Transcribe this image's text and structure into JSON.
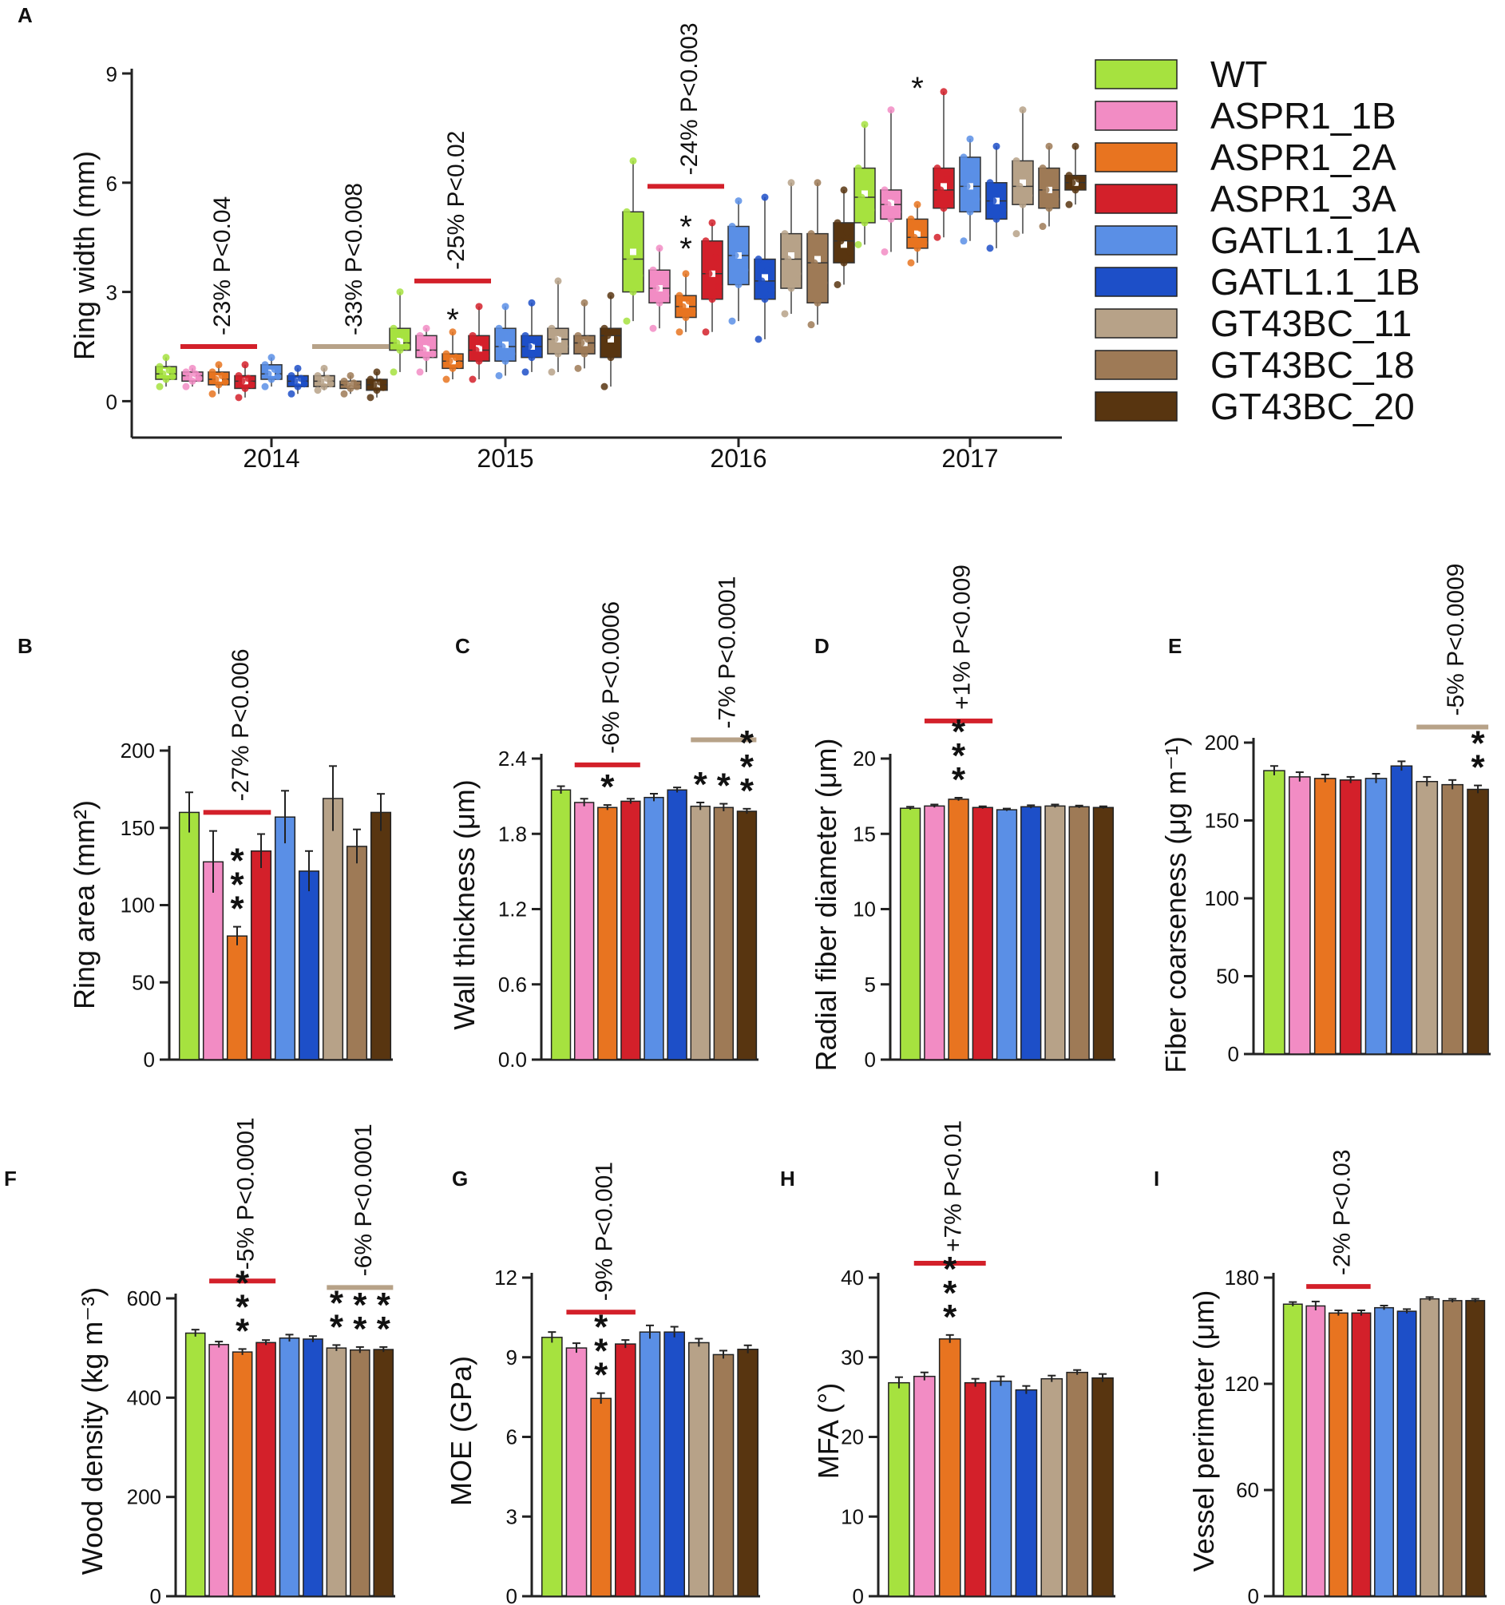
{
  "colors": {
    "WT": "#a6e23f",
    "ASPR1_1B": "#f28cc4",
    "ASPR1_2A": "#e87420",
    "ASPR1_3A": "#d3202a",
    "GATL1.1_1A": "#5a8fe6",
    "GATL1.1_1B": "#1d4fc8",
    "GT43BC_11": "#b7a288",
    "GT43BC_18": "#9e7a56",
    "GT43BC_20": "#583510"
  },
  "legend": [
    "WT",
    "ASPR1_1B",
    "ASPR1_2A",
    "ASPR1_3A",
    "GATL1.1_1A",
    "GATL1.1_1B",
    "GT43BC_11",
    "GT43BC_18",
    "GT43BC_20"
  ],
  "chart_data": [
    {
      "id": "A",
      "letter": "A",
      "type": "box",
      "ylabel": "Ring width (mm)",
      "yticks": [
        "0",
        "3",
        "6",
        "9"
      ],
      "ylim": [
        -1,
        9
      ],
      "categories": [
        "2014",
        "2015",
        "2016",
        "2017"
      ],
      "series": [
        {
          "name": "WT",
          "values": [
            {
              "q1": 0.6,
              "median": 0.75,
              "q3": 0.95,
              "min": 0.4,
              "max": 1.2,
              "mean": 0.8
            },
            {
              "q1": 1.4,
              "median": 1.6,
              "q3": 2.0,
              "min": 0.8,
              "max": 3.0,
              "mean": 1.65
            },
            {
              "q1": 3.0,
              "median": 3.9,
              "q3": 5.2,
              "min": 2.2,
              "max": 6.6,
              "mean": 4.1
            },
            {
              "q1": 4.9,
              "median": 5.6,
              "q3": 6.4,
              "min": 4.3,
              "max": 7.6,
              "mean": 5.7
            }
          ]
        },
        {
          "name": "ASPR1_1B",
          "values": [
            {
              "q1": 0.55,
              "median": 0.7,
              "q3": 0.8,
              "min": 0.4,
              "max": 0.9,
              "mean": 0.68
            },
            {
              "q1": 1.2,
              "median": 1.4,
              "q3": 1.8,
              "min": 0.8,
              "max": 2.0,
              "mean": 1.45
            },
            {
              "q1": 2.7,
              "median": 3.1,
              "q3": 3.6,
              "min": 2.0,
              "max": 4.2,
              "mean": 3.1
            },
            {
              "q1": 5.0,
              "median": 5.4,
              "q3": 5.8,
              "min": 4.1,
              "max": 8.0,
              "mean": 5.45
            }
          ]
        },
        {
          "name": "ASPR1_2A",
          "values": [
            {
              "q1": 0.45,
              "median": 0.6,
              "q3": 0.8,
              "min": 0.2,
              "max": 1.0,
              "mean": 0.62
            },
            {
              "q1": 0.9,
              "median": 1.1,
              "q3": 1.3,
              "min": 0.6,
              "max": 1.9,
              "mean": 1.1
            },
            {
              "q1": 2.3,
              "median": 2.6,
              "q3": 2.9,
              "min": 1.9,
              "max": 3.5,
              "mean": 2.65
            },
            {
              "q1": 4.2,
              "median": 4.5,
              "q3": 5.0,
              "min": 3.8,
              "max": 5.4,
              "mean": 4.6
            }
          ]
        },
        {
          "name": "ASPR1_3A",
          "values": [
            {
              "q1": 0.35,
              "median": 0.55,
              "q3": 0.7,
              "min": 0.1,
              "max": 1.0,
              "mean": 0.55
            },
            {
              "q1": 1.1,
              "median": 1.4,
              "q3": 1.8,
              "min": 0.6,
              "max": 2.6,
              "mean": 1.45
            },
            {
              "q1": 2.8,
              "median": 3.5,
              "q3": 4.4,
              "min": 1.9,
              "max": 4.9,
              "mean": 3.5
            },
            {
              "q1": 5.3,
              "median": 5.8,
              "q3": 6.4,
              "min": 4.5,
              "max": 8.5,
              "mean": 5.9
            }
          ]
        },
        {
          "name": "GATL1.1_1A",
          "values": [
            {
              "q1": 0.6,
              "median": 0.75,
              "q3": 1.0,
              "min": 0.4,
              "max": 1.2,
              "mean": 0.78
            },
            {
              "q1": 1.1,
              "median": 1.5,
              "q3": 2.0,
              "min": 0.7,
              "max": 2.6,
              "mean": 1.55
            },
            {
              "q1": 3.2,
              "median": 4.0,
              "q3": 4.8,
              "min": 2.2,
              "max": 5.5,
              "mean": 4.0
            },
            {
              "q1": 5.2,
              "median": 5.9,
              "q3": 6.7,
              "min": 4.4,
              "max": 7.2,
              "mean": 5.9
            }
          ]
        },
        {
          "name": "GATL1.1_1B",
          "values": [
            {
              "q1": 0.4,
              "median": 0.55,
              "q3": 0.7,
              "min": 0.2,
              "max": 0.9,
              "mean": 0.55
            },
            {
              "q1": 1.2,
              "median": 1.5,
              "q3": 1.8,
              "min": 0.8,
              "max": 2.7,
              "mean": 1.5
            },
            {
              "q1": 2.8,
              "median": 3.3,
              "q3": 3.9,
              "min": 1.7,
              "max": 5.6,
              "mean": 3.4
            },
            {
              "q1": 5.0,
              "median": 5.5,
              "q3": 6.0,
              "min": 4.2,
              "max": 7.0,
              "mean": 5.5
            }
          ]
        },
        {
          "name": "GT43BC_11",
          "values": [
            {
              "q1": 0.4,
              "median": 0.55,
              "q3": 0.7,
              "min": 0.3,
              "max": 0.9,
              "mean": 0.56
            },
            {
              "q1": 1.3,
              "median": 1.7,
              "q3": 2.0,
              "min": 0.8,
              "max": 3.3,
              "mean": 1.7
            },
            {
              "q1": 3.1,
              "median": 3.9,
              "q3": 4.6,
              "min": 2.4,
              "max": 6.0,
              "mean": 4.0
            },
            {
              "q1": 5.4,
              "median": 5.9,
              "q3": 6.6,
              "min": 4.6,
              "max": 8.0,
              "mean": 6.0
            }
          ]
        },
        {
          "name": "GT43BC_18",
          "values": [
            {
              "q1": 0.35,
              "median": 0.45,
              "q3": 0.55,
              "min": 0.2,
              "max": 0.7,
              "mean": 0.45
            },
            {
              "q1": 1.3,
              "median": 1.6,
              "q3": 1.8,
              "min": 0.9,
              "max": 2.7,
              "mean": 1.6
            },
            {
              "q1": 2.7,
              "median": 3.8,
              "q3": 4.6,
              "min": 2.1,
              "max": 6.0,
              "mean": 3.9
            },
            {
              "q1": 5.3,
              "median": 5.8,
              "q3": 6.4,
              "min": 4.8,
              "max": 7.0,
              "mean": 5.8
            }
          ]
        },
        {
          "name": "GT43BC_20",
          "values": [
            {
              "q1": 0.3,
              "median": 0.45,
              "q3": 0.6,
              "min": 0.1,
              "max": 0.8,
              "mean": 0.45
            },
            {
              "q1": 1.2,
              "median": 1.8,
              "q3": 2.0,
              "min": 0.4,
              "max": 2.9,
              "mean": 1.7
            },
            {
              "q1": 3.8,
              "median": 4.4,
              "q3": 4.9,
              "min": 3.2,
              "max": 5.8,
              "mean": 4.3
            },
            {
              "q1": 5.8,
              "median": 6.0,
              "q3": 6.2,
              "min": 5.4,
              "max": 7.0,
              "mean": 6.0
            }
          ]
        }
      ],
      "annotations": [
        {
          "text": "-23% P<0.04",
          "group": 0,
          "from": 1,
          "to": 3,
          "color": "#d3202a",
          "y": 1.5
        },
        {
          "text": "-33% P<0.008",
          "group": 0,
          "from": 6,
          "to": 8,
          "color": "#b7a288",
          "y": 1.5
        },
        {
          "text": "-25% P<0.02",
          "group": 1,
          "from": 1,
          "to": 3,
          "color": "#d3202a",
          "y": 3.3
        },
        {
          "text": "-24% P<0.003",
          "group": 2,
          "from": 1,
          "to": 3,
          "color": "#d3202a",
          "y": 5.9
        }
      ],
      "stars": [
        {
          "group": 1,
          "series": 2,
          "y": 2.25,
          "text": "*",
          "color": "#e87420"
        },
        {
          "group": 2,
          "series": 2,
          "y": 4.8,
          "text": "*",
          "color": "#e87420"
        },
        {
          "group": 2,
          "series": 2,
          "y": 4.2,
          "text": "*",
          "color": "#e87420"
        },
        {
          "group": 3,
          "series": 2,
          "y": 8.6,
          "text": "*",
          "color": "#e87420"
        }
      ]
    },
    {
      "id": "B",
      "letter": "B",
      "type": "bar",
      "ylabel": "Ring area (mm²)",
      "yticks": [
        "0",
        "50",
        "100",
        "150",
        "200"
      ],
      "ylim": [
        0,
        200
      ],
      "values": [
        160,
        128,
        80,
        135,
        157,
        122,
        169,
        138,
        160
      ],
      "errors": [
        13,
        20,
        6,
        11,
        17,
        13,
        21,
        11,
        12
      ],
      "annotations": [
        {
          "text": "-27% P<0.006",
          "from": 1,
          "to": 3,
          "color": "#d3202a",
          "y": 160
        }
      ],
      "stars": [
        {
          "series": 2,
          "count": 3,
          "color": "#e87420"
        }
      ]
    },
    {
      "id": "C",
      "letter": "C",
      "type": "bar",
      "ylabel": "Wall thickness (μm)",
      "yticks": [
        "0.0",
        "0.6",
        "1.2",
        "1.8",
        "2.4"
      ],
      "ylim": [
        0,
        2.4
      ],
      "values": [
        2.15,
        2.05,
        2.01,
        2.06,
        2.09,
        2.15,
        2.02,
        2.01,
        1.98
      ],
      "errors": [
        0.03,
        0.03,
        0.02,
        0.02,
        0.03,
        0.02,
        0.03,
        0.03,
        0.02
      ],
      "annotations": [
        {
          "text": "-6% P<0.0006",
          "from": 1,
          "to": 3,
          "color": "#d3202a",
          "y": 2.35
        },
        {
          "text": "-7% P<0.0001",
          "from": 6,
          "to": 8,
          "color": "#b7a288",
          "y": 2.55
        }
      ],
      "stars": [
        {
          "series": 2,
          "count": 1,
          "color": "#e87420"
        },
        {
          "series": 6,
          "count": 1,
          "color": "#b7a288"
        },
        {
          "series": 7,
          "count": 1,
          "color": "#9e7a56"
        },
        {
          "series": 8,
          "count": 3,
          "color": "#583510"
        }
      ]
    },
    {
      "id": "D",
      "letter": "D",
      "type": "bar",
      "ylabel": "Radial fiber diameter (μm)",
      "yticks": [
        "0",
        "5",
        "10",
        "15",
        "20"
      ],
      "ylim": [
        0,
        20
      ],
      "values": [
        16.7,
        16.85,
        17.3,
        16.75,
        16.6,
        16.8,
        16.85,
        16.8,
        16.75
      ],
      "errors": [
        0.1,
        0.1,
        0.1,
        0.08,
        0.08,
        0.1,
        0.1,
        0.08,
        0.08
      ],
      "annotations": [
        {
          "text": "+1% P<0.009",
          "from": 1,
          "to": 3,
          "color": "#d3202a",
          "y": 22.5
        }
      ],
      "stars": [
        {
          "series": 2,
          "count": 3,
          "color": "#e87420"
        }
      ]
    },
    {
      "id": "E",
      "letter": "E",
      "type": "bar",
      "ylabel": "Fiber coarseness (μg m⁻¹)",
      "yticks": [
        "0",
        "50",
        "100",
        "150",
        "200"
      ],
      "ylim": [
        0,
        200
      ],
      "values": [
        182,
        178,
        177,
        176,
        177,
        185,
        175,
        173,
        170
      ],
      "errors": [
        3,
        3,
        2.5,
        2,
        3,
        3,
        3,
        3,
        2.5
      ],
      "annotations": [
        {
          "text": "-5% P<0.0009",
          "from": 6,
          "to": 8,
          "color": "#b7a288",
          "y": 210
        }
      ],
      "stars": [
        {
          "series": 8,
          "count": 2,
          "color": "#583510"
        }
      ]
    },
    {
      "id": "F",
      "letter": "F",
      "type": "bar",
      "ylabel": "Wood density (kg m⁻³)",
      "yticks": [
        "0",
        "200",
        "400",
        "600"
      ],
      "ylim": [
        0,
        600
      ],
      "values": [
        530,
        507,
        492,
        511,
        520,
        518,
        500,
        496,
        497
      ],
      "errors": [
        7,
        6,
        6,
        5,
        7,
        6,
        6,
        6,
        5
      ],
      "annotations": [
        {
          "text": "-5% P<0.0001",
          "from": 1,
          "to": 3,
          "color": "#d3202a",
          "y": 635
        },
        {
          "text": "-6% P<0.0001",
          "from": 6,
          "to": 8,
          "color": "#b7a288",
          "y": 622
        }
      ],
      "stars": [
        {
          "series": 2,
          "count": 3,
          "color": "#e87420"
        },
        {
          "series": 6,
          "count": 2,
          "color": "#b7a288"
        },
        {
          "series": 7,
          "count": 2,
          "color": "#9e7a56"
        },
        {
          "series": 8,
          "count": 2,
          "color": "#583510"
        }
      ]
    },
    {
      "id": "G",
      "letter": "G",
      "type": "bar",
      "ylabel": "MOE (GPa)",
      "yticks": [
        "0",
        "3",
        "6",
        "9",
        "12"
      ],
      "ylim": [
        0,
        12
      ],
      "values": [
        9.75,
        9.35,
        7.45,
        9.5,
        9.95,
        9.95,
        9.55,
        9.1,
        9.3
      ],
      "errors": [
        0.2,
        0.18,
        0.2,
        0.15,
        0.25,
        0.2,
        0.15,
        0.15,
        0.15
      ],
      "annotations": [
        {
          "text": "-9% P<0.001",
          "from": 1,
          "to": 3,
          "color": "#d3202a",
          "y": 10.7
        }
      ],
      "stars": [
        {
          "series": 2,
          "count": 3,
          "color": "#e87420"
        }
      ]
    },
    {
      "id": "H",
      "letter": "H",
      "type": "bar",
      "ylabel": "MFA (°)",
      "yticks": [
        "0",
        "10",
        "20",
        "30",
        "40"
      ],
      "ylim": [
        0,
        40
      ],
      "values": [
        26.8,
        27.6,
        32.3,
        26.8,
        27.0,
        25.9,
        27.3,
        28.1,
        27.4
      ],
      "errors": [
        0.7,
        0.5,
        0.5,
        0.5,
        0.6,
        0.5,
        0.4,
        0.3,
        0.5
      ],
      "annotations": [
        {
          "text": "+7% P<0.01",
          "from": 1,
          "to": 3,
          "color": "#d3202a",
          "y": 41.8
        }
      ],
      "stars": [
        {
          "series": 2,
          "count": 3,
          "color": "#e87420"
        }
      ]
    },
    {
      "id": "I",
      "letter": "I",
      "type": "bar",
      "ylabel": "Vessel perimeter (μm)",
      "yticks": [
        "0",
        "60",
        "120",
        "180"
      ],
      "ylim": [
        0,
        180
      ],
      "values": [
        165,
        164,
        160,
        160,
        163,
        161,
        168,
        167,
        167
      ],
      "errors": [
        1.2,
        2.5,
        1.5,
        1.5,
        1.2,
        1.2,
        1,
        1,
        1
      ],
      "annotations": [
        {
          "text": "-2% P<0.03",
          "from": 1,
          "to": 3,
          "color": "#d3202a",
          "y": 175
        }
      ],
      "stars": []
    }
  ]
}
